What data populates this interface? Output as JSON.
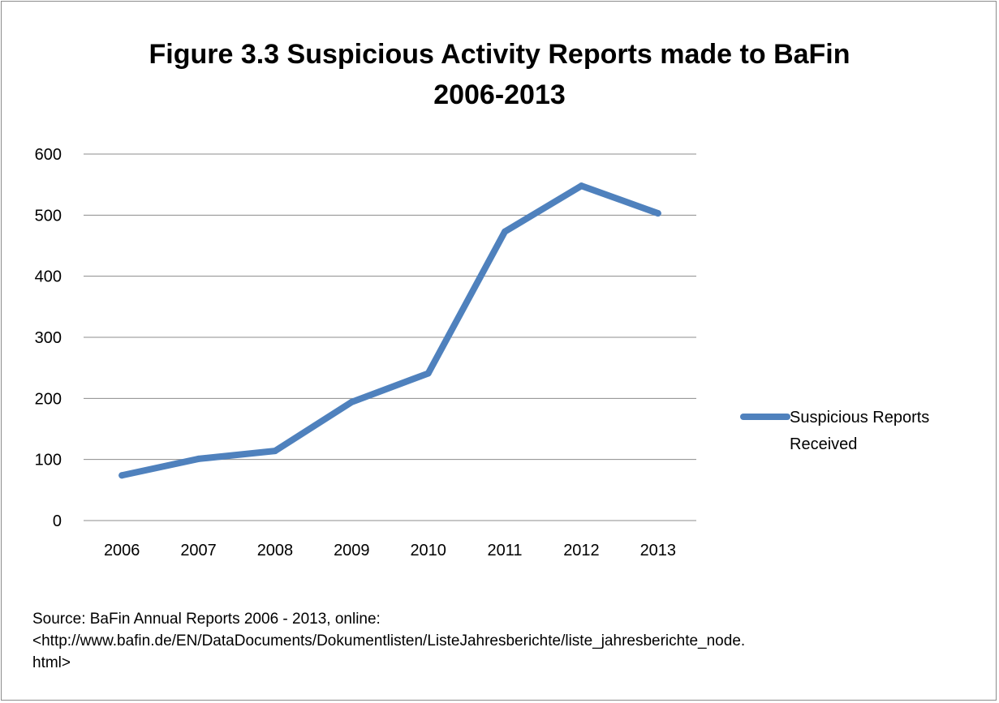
{
  "chart_data": {
    "type": "line",
    "title": "Figure 3.3 Suspicious Activity Reports made to BaFin 2006-2013",
    "title_lines": [
      "Figure 3.3 Suspicious Activity Reports made to BaFin",
      "2006-2013"
    ],
    "categories": [
      "2006",
      "2007",
      "2008",
      "2009",
      "2010",
      "2011",
      "2012",
      "2013"
    ],
    "series": [
      {
        "name": "Suspicious Reports Received",
        "color": "#4f81bd",
        "values": [
          74,
          101,
          114,
          194,
          241,
          473,
          548,
          503
        ]
      }
    ],
    "ylim": [
      0,
      600
    ],
    "yticks": [
      "0",
      "100",
      "200",
      "300",
      "400",
      "500",
      "600"
    ],
    "grid": true,
    "legend_position": "right",
    "legend_lines": [
      "Suspicious Reports",
      "Received"
    ]
  },
  "source": {
    "line1": "Source: BaFin Annual Reports 2006 - 2013, online:",
    "line2": "<http://www.bafin.de/EN/DataDocuments/Dokumentlisten/ListeJahresberichte/liste_jahresberichte_node.",
    "line3": "html>"
  }
}
